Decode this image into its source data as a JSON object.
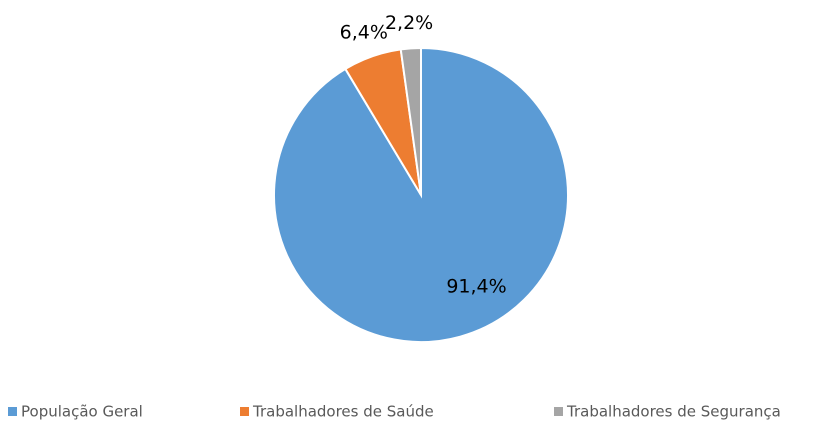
{
  "chart_data": {
    "type": "pie",
    "categories": [
      "População Geral",
      "Trabalhadores de Saúde",
      "Trabalhadores de Segurança"
    ],
    "values": [
      91.4,
      6.4,
      2.2
    ],
    "value_labels": [
      "91,4%",
      "6,4%",
      "2,2%"
    ],
    "colors": [
      "#5b9bd5",
      "#ed7d31",
      "#a5a5a5"
    ],
    "legend": "bottom"
  }
}
